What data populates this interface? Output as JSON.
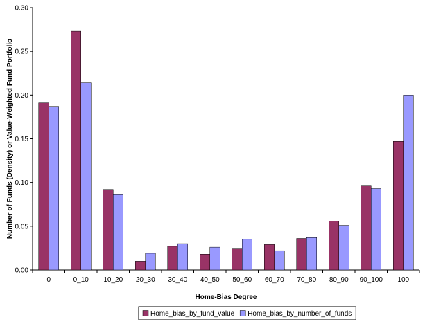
{
  "chart_data": {
    "type": "bar",
    "title": "",
    "xlabel": "Home-Bias Degree",
    "ylabel": "Number of Funds (Density) or Value-Weighted Fund Portfolio",
    "ylim": [
      0,
      0.3
    ],
    "yticks": [
      "0.00",
      "0.05",
      "0.10",
      "0.15",
      "0.20",
      "0.25",
      "0.30"
    ],
    "categories": [
      "0",
      "0_10",
      "10_20",
      "20_30",
      "30_40",
      "40_50",
      "50_60",
      "60_70",
      "70_80",
      "80_90",
      "90_100",
      "100"
    ],
    "series": [
      {
        "name": "Home_bias_by_fund_value",
        "color": "#993366",
        "values": [
          0.191,
          0.273,
          0.092,
          0.01,
          0.027,
          0.018,
          0.024,
          0.029,
          0.036,
          0.056,
          0.096,
          0.147
        ]
      },
      {
        "name": "Home_bias_by_number_of_funds",
        "color": "#9999FF",
        "values": [
          0.187,
          0.214,
          0.086,
          0.019,
          0.03,
          0.026,
          0.035,
          0.022,
          0.037,
          0.051,
          0.093,
          0.2
        ]
      }
    ],
    "grid": false,
    "legend_position": "bottom-center"
  }
}
